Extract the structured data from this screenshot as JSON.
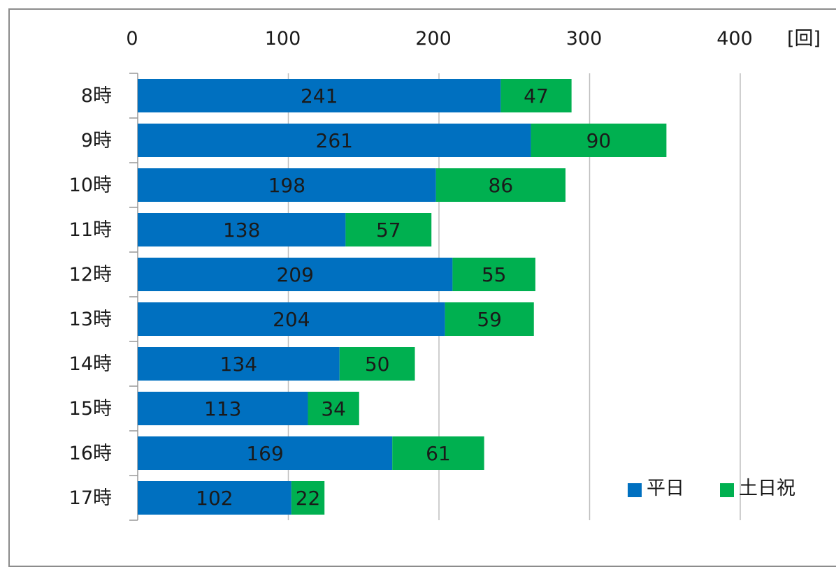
{
  "chart_data": {
    "type": "bar",
    "orientation": "horizontal",
    "stacked": true,
    "categories": [
      "8時",
      "9時",
      "10時",
      "11時",
      "12時",
      "13時",
      "14時",
      "15時",
      "16時",
      "17時"
    ],
    "series": [
      {
        "name": "平日",
        "values": [
          241,
          261,
          198,
          138,
          209,
          204,
          134,
          113,
          169,
          102
        ],
        "color": "#0070c0"
      },
      {
        "name": "土日祝",
        "values": [
          47,
          90,
          86,
          57,
          55,
          59,
          50,
          34,
          61,
          22
        ],
        "color": "#00b050"
      }
    ],
    "xlim": [
      0,
      400
    ],
    "xticks": [
      "0",
      "100",
      "200",
      "300",
      "400"
    ],
    "xunit": "[回]",
    "axis_position": "top",
    "grid": true,
    "data_labels": true,
    "legend_position": "bottom-right"
  }
}
